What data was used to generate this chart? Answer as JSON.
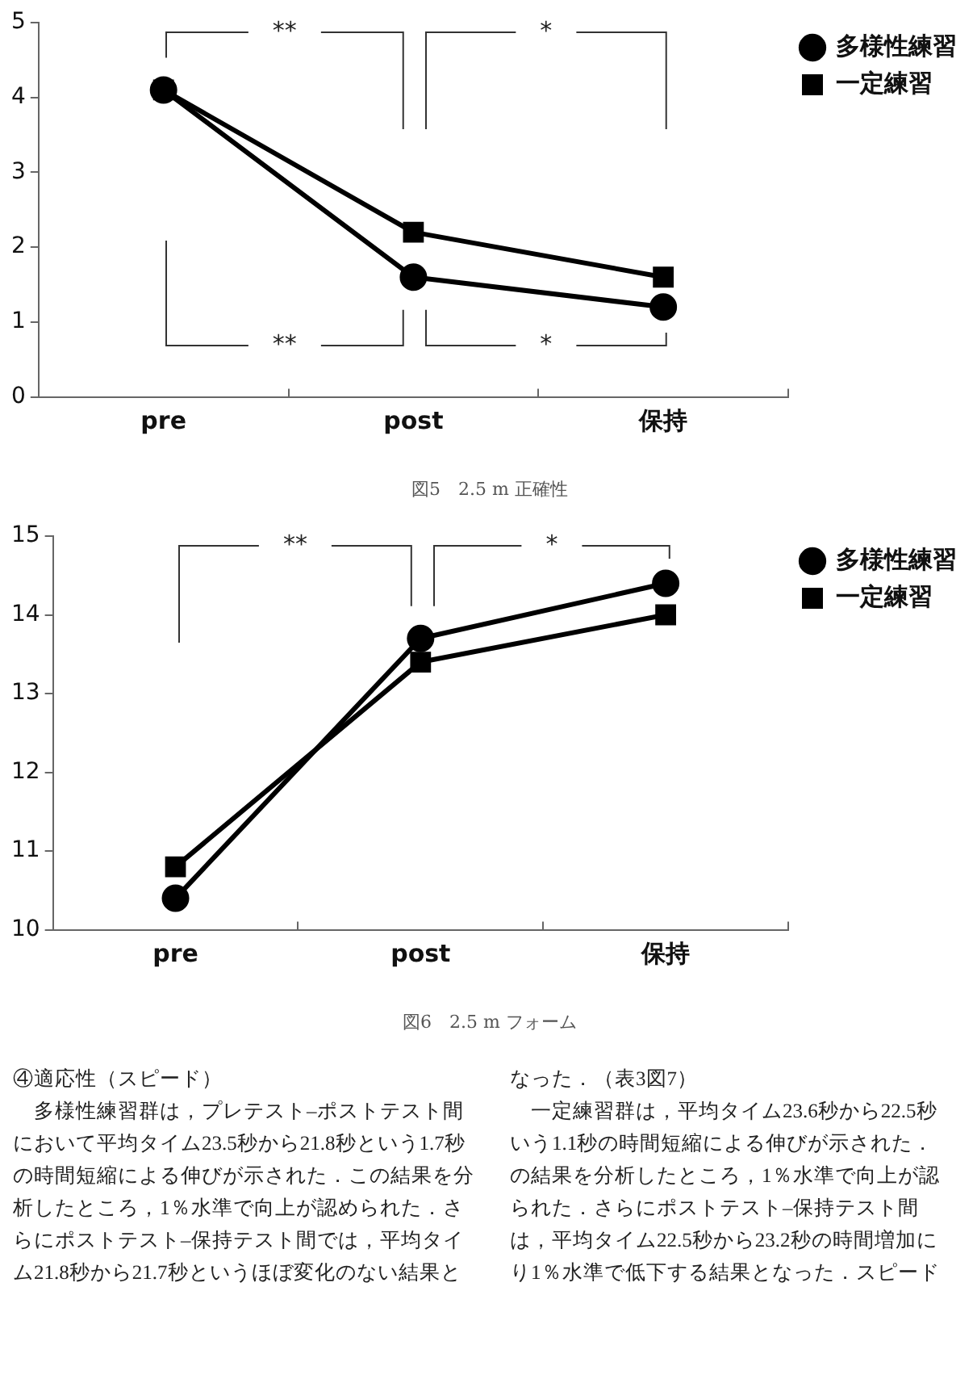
{
  "chart_data": [
    {
      "type": "line",
      "title": "図5　2.5 m 正確性",
      "categories": [
        "pre",
        "post",
        "保持"
      ],
      "ylim": [
        0,
        5
      ],
      "yticks": [
        0,
        1,
        2,
        3,
        4,
        5
      ],
      "grid": false,
      "legend": "top right",
      "line_style": "solid",
      "series": [
        {
          "name": "多様性練習",
          "color": "#000000",
          "marker": "circle",
          "values": [
            4.1,
            1.6,
            1.2
          ]
        },
        {
          "name": "一定練習",
          "color": "#000000",
          "marker": "square",
          "values": [
            4.1,
            2.2,
            1.6
          ]
        }
      ],
      "annotations": [
        "**",
        "*",
        "**",
        "*"
      ]
    },
    {
      "type": "line",
      "title": "図6　2.5 m フォーム",
      "categories": [
        "pre",
        "post",
        "保持"
      ],
      "ylim": [
        10,
        15
      ],
      "yticks": [
        10,
        11,
        12,
        13,
        14,
        15
      ],
      "grid": false,
      "legend": "top right",
      "line_style": "solid",
      "series": [
        {
          "name": "多様性練習",
          "color": "#000000",
          "marker": "circle",
          "values": [
            10.4,
            13.7,
            14.4
          ]
        },
        {
          "name": "一定練習",
          "color": "#000000",
          "marker": "square",
          "values": [
            10.8,
            13.4,
            14.0
          ]
        }
      ],
      "annotations": [
        "**",
        "*"
      ]
    },
    {
      "type": "other",
      "annotations": [
        "④適応性（スピード）",
        "　多様性練習群は，プレテスト–ポストテスト間",
        "において平均タイム23.5秒から21.8秒という1.7秒",
        "の時間短縮による伸びが示された．この結果を分",
        "析したところ，1％水準で向上が認められた．さ",
        "らにポストテスト–保持テスト間では，平均タイ",
        "ム21.8秒から21.7秒というほぼ変化のない結果と",
        "なった．（表3図7）",
        "　一定練習群は，平均タイム23.6秒から22.5秒",
        "いう1.1秒の時間短縮による伸びが示された．",
        "の結果を分析したところ，1％水準で向上が認",
        "られた．さらにポストテスト–保持テスト間",
        "は，平均タイム22.5秒から23.2秒の時間増加に",
        "り1％水準で低下する結果となった．スピード"
      ]
    }
  ]
}
